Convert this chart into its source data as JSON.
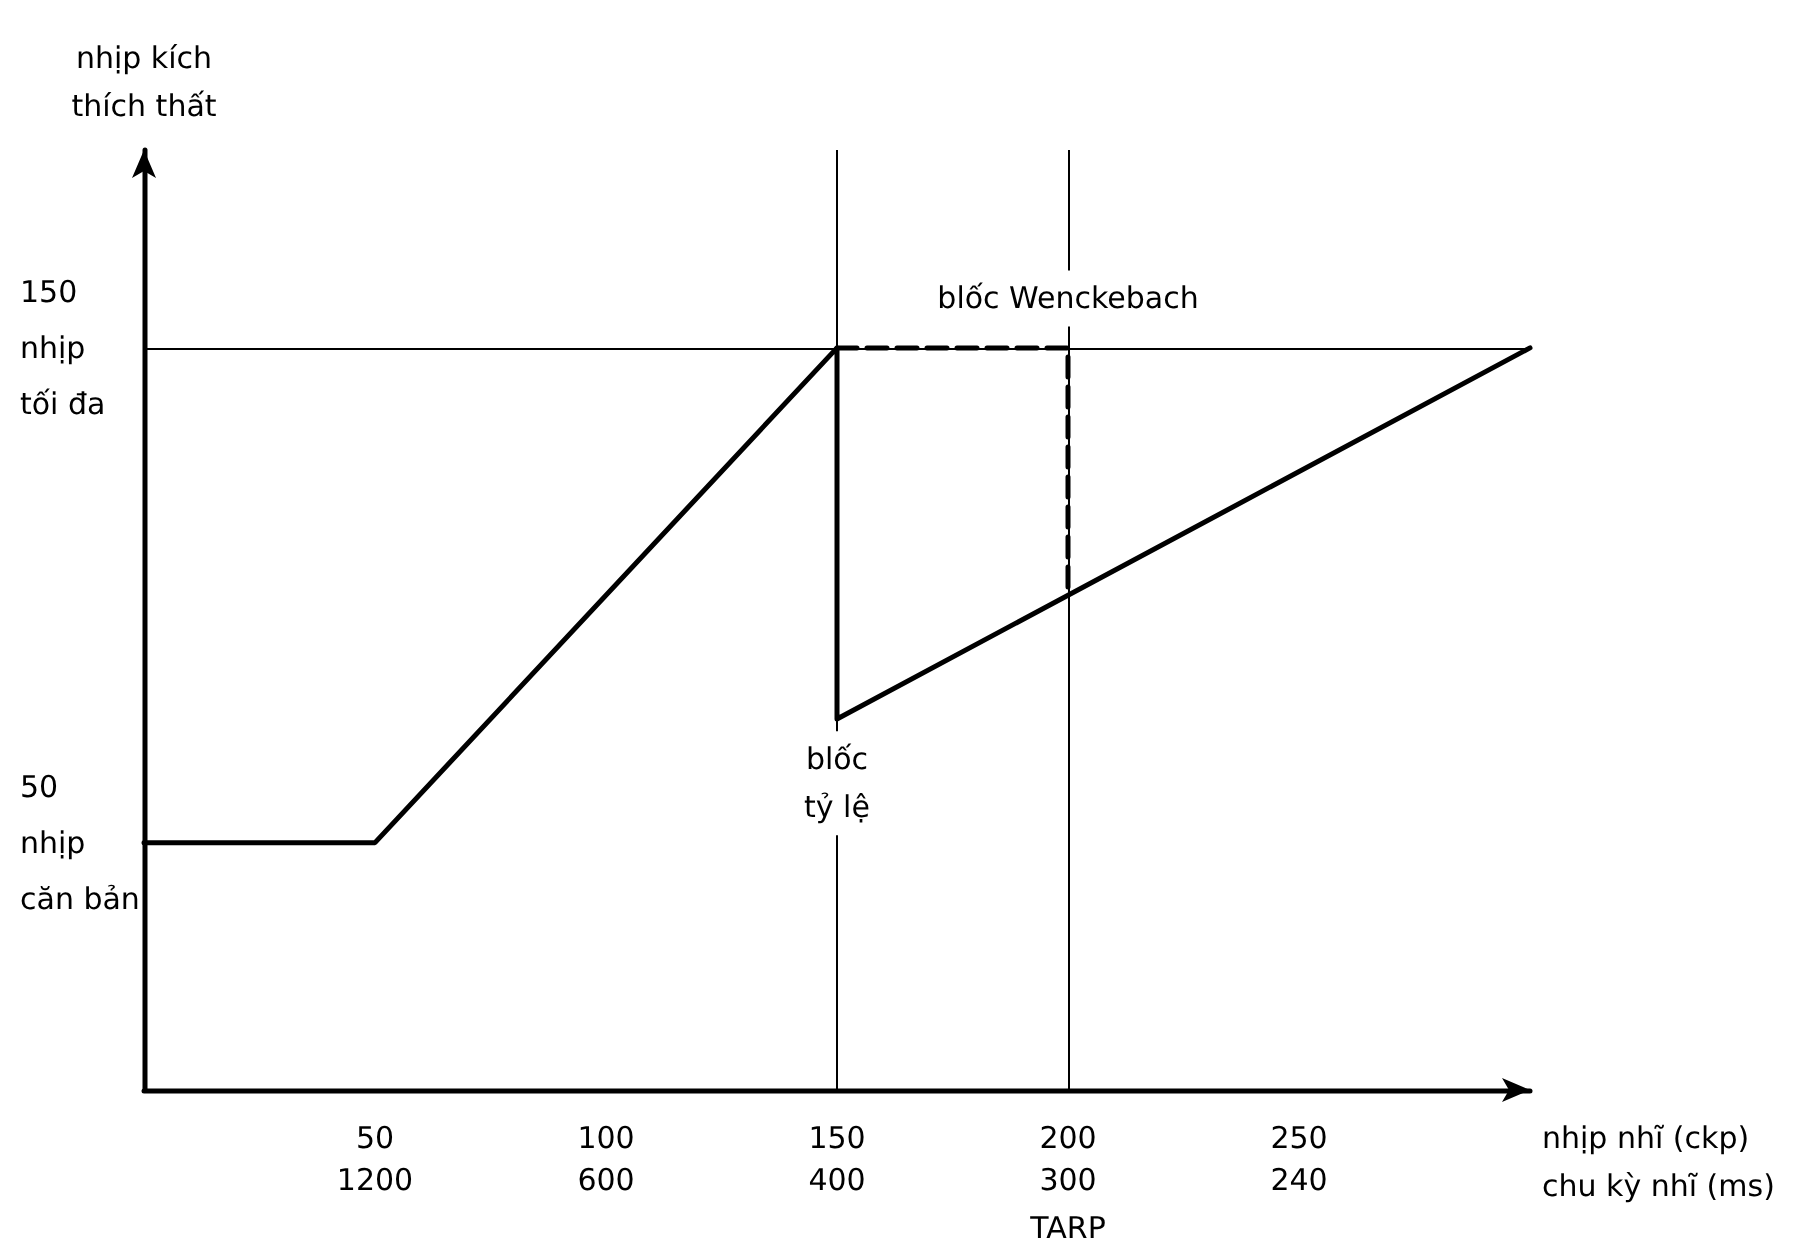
{
  "chart_data": {
    "type": "line",
    "ylabel": "nhịp kích\nthích thất",
    "xlabel": "nhịp nhĩ (ckp)\nchu kỳ nhĩ (ms)",
    "xlim": [
      0,
      300
    ],
    "ylim": [
      0,
      190
    ],
    "xticks": [
      50,
      100,
      150,
      200,
      250
    ],
    "yticks": [
      {
        "value": 50,
        "label": "50\nnhịp\ncăn bản"
      },
      {
        "value": 150,
        "label": "150\nnhịp\ntối đa"
      }
    ],
    "series": [
      {
        "color": "#000000",
        "x": [
          0,
          50,
          150,
          150,
          300
        ],
        "values": [
          50,
          50,
          150,
          75,
          150
        ],
        "line_style": "solid"
      },
      {
        "color": "#000000",
        "x": [
          150,
          200,
          200
        ],
        "values": [
          150,
          150,
          100
        ],
        "line_style": "dashed"
      }
    ],
    "ref_lines": [
      {
        "axis": "y",
        "value": 150
      },
      {
        "axis": "x",
        "value": 150
      },
      {
        "axis": "x",
        "value": 200
      }
    ],
    "annotations": [
      {
        "text": "blốc Wenckebach",
        "x": 200,
        "y": 160
      },
      {
        "text": "blốc\ntỷ lệ",
        "x": 150,
        "y": 62
      },
      "1200",
      "600",
      "400",
      "300",
      "240",
      "TARP"
    ],
    "marker": "none",
    "grid": false
  }
}
